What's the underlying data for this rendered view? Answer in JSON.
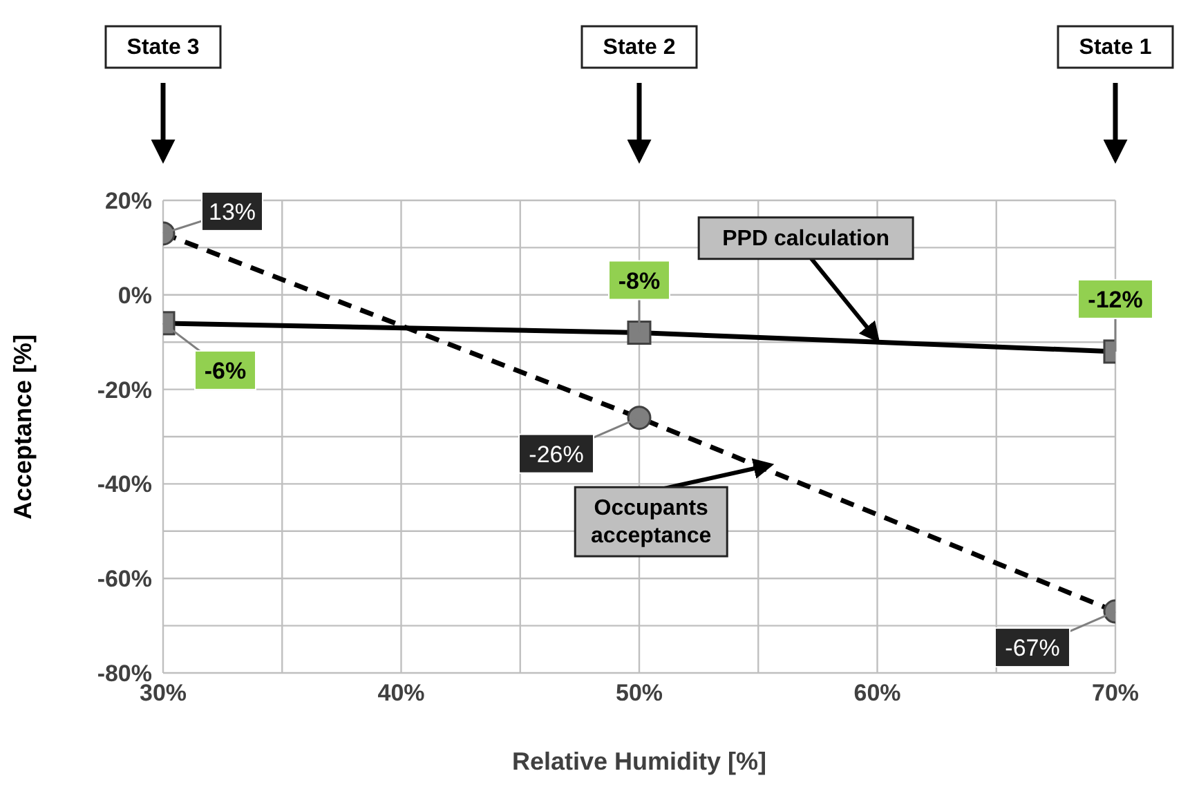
{
  "chart_data": {
    "type": "line",
    "xlabel": "Relative Humidity [%]",
    "ylabel": "Acceptance [%]",
    "xlim": [
      30,
      70
    ],
    "xticks": [
      {
        "value": 30,
        "label": "30%"
      },
      {
        "value": 35,
        "label": null
      },
      {
        "value": 40,
        "label": "40%"
      },
      {
        "value": 45,
        "label": null
      },
      {
        "value": 50,
        "label": "50%"
      },
      {
        "value": 55,
        "label": null
      },
      {
        "value": 60,
        "label": "60%"
      },
      {
        "value": 65,
        "label": null
      },
      {
        "value": 70,
        "label": "70%"
      }
    ],
    "ylim": [
      -80,
      20
    ],
    "yticks": [
      {
        "value": -80,
        "label": "-80%"
      },
      {
        "value": -70,
        "label": null
      },
      {
        "value": -60,
        "label": "-60%"
      },
      {
        "value": -50,
        "label": null
      },
      {
        "value": -40,
        "label": "-40%"
      },
      {
        "value": -30,
        "label": null
      },
      {
        "value": -20,
        "label": "-20%"
      },
      {
        "value": -10,
        "label": null
      },
      {
        "value": 0,
        "label": "0%"
      },
      {
        "value": 10,
        "label": null
      },
      {
        "value": 20,
        "label": "20%"
      }
    ],
    "grid": true,
    "legend": false,
    "x": [
      30,
      50,
      70
    ],
    "series": [
      {
        "name": "PPD calculation",
        "color": "#000000",
        "values": [
          -6,
          -8,
          -12
        ],
        "value_labels": [
          "-6%",
          "-8%",
          "-12%"
        ],
        "marker": "square",
        "line_style": "solid"
      },
      {
        "name": "Occupants acceptance",
        "color": "#000000",
        "values": [
          13,
          -26,
          -67
        ],
        "value_labels": [
          "13%",
          "-26%",
          "-67%"
        ],
        "marker": "circle",
        "line_style": "dashed"
      }
    ],
    "annotations": [
      {
        "text": "State 3",
        "x": 30
      },
      {
        "text": "State 2",
        "x": 50
      },
      {
        "text": "State 1",
        "x": 70
      }
    ]
  }
}
